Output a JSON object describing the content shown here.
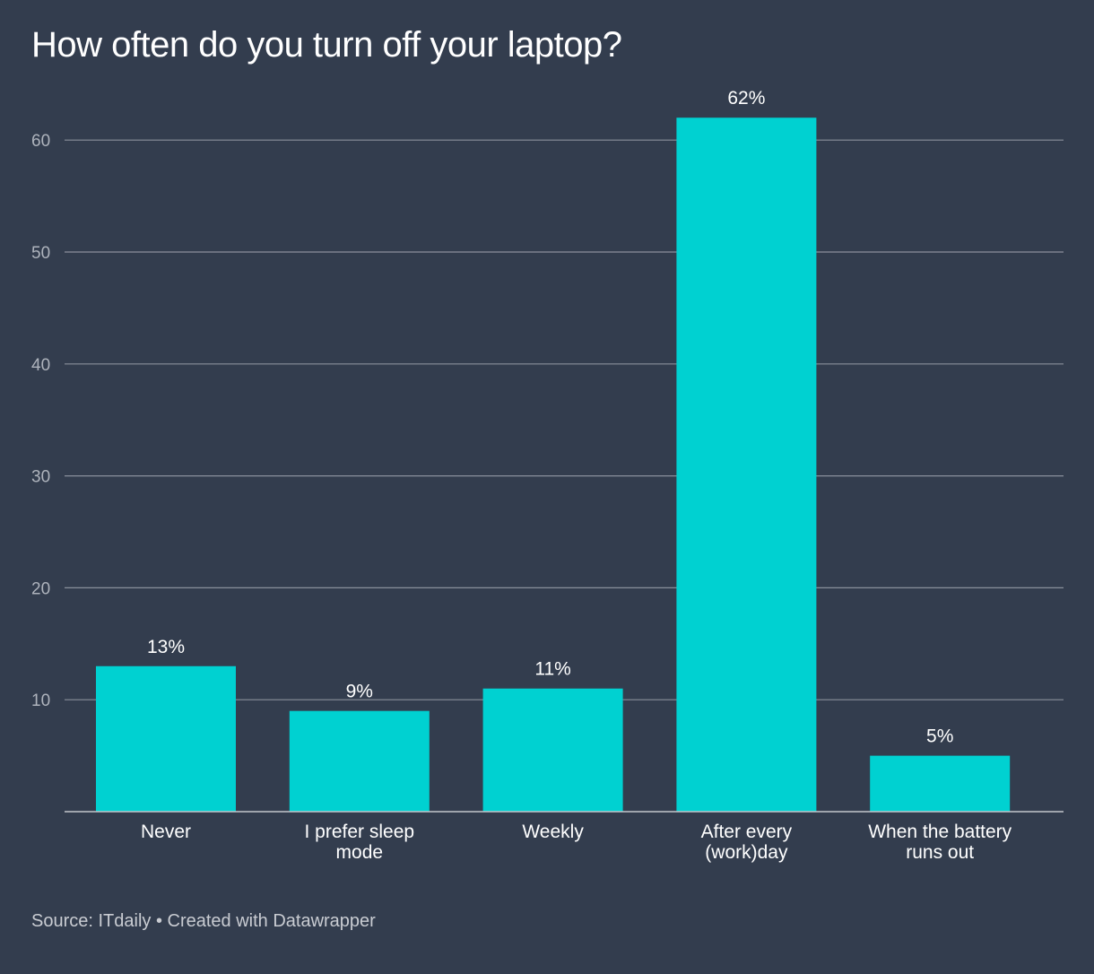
{
  "chart_data": {
    "type": "bar",
    "title": "How often do you turn off your laptop?",
    "categories": [
      [
        "Never"
      ],
      [
        "I prefer sleep",
        "mode"
      ],
      [
        "Weekly"
      ],
      [
        "After every",
        "(work)day"
      ],
      [
        "When the battery",
        "runs out"
      ]
    ],
    "values": [
      13,
      9,
      11,
      62,
      5
    ],
    "value_labels": [
      "13%",
      "9%",
      "11%",
      "62%",
      "5%"
    ],
    "y_ticks": [
      10,
      20,
      30,
      40,
      50,
      60
    ],
    "ylim": [
      0,
      62
    ],
    "xlabel": "",
    "ylabel": "",
    "grid": true,
    "bar_color": "#00d1d1",
    "grid_color": "#8a909b"
  },
  "footer": {
    "source": "Source: ITdaily • Created with Datawrapper"
  }
}
